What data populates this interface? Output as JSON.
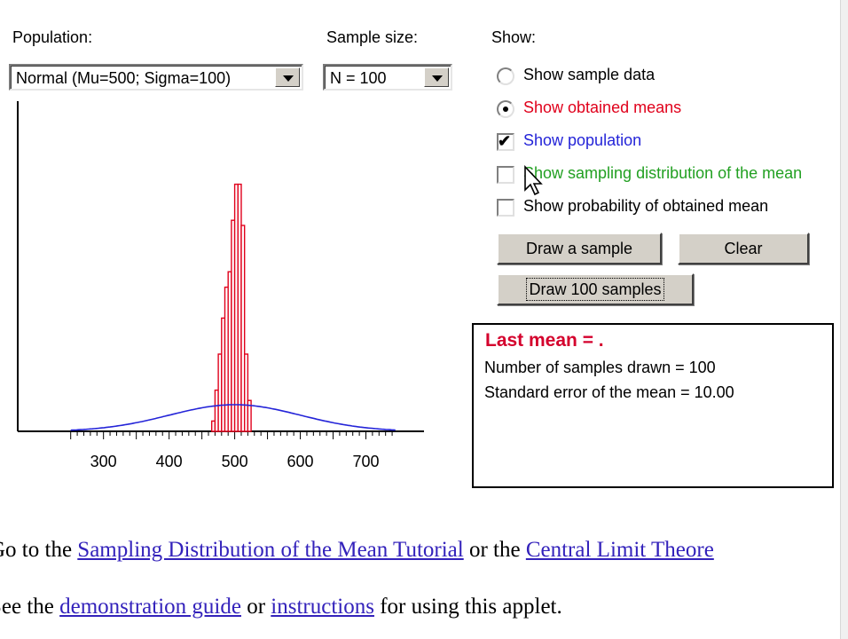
{
  "labels": {
    "population": "Population:",
    "sample_size": "Sample size:",
    "show": "Show:"
  },
  "population_select": {
    "value": "Normal (Mu=500; Sigma=100)"
  },
  "sample_size_select": {
    "value": "N = 100"
  },
  "options": [
    {
      "type": "radio",
      "label": "Show sample data",
      "checked": false,
      "color": "#000000"
    },
    {
      "type": "radio",
      "label": "Show obtained means",
      "checked": true,
      "color": "#e0001b"
    },
    {
      "type": "checkbox",
      "label": "Show population",
      "checked": true,
      "color": "#2424d8"
    },
    {
      "type": "checkbox",
      "label": "Show sampling distribution of the mean",
      "checked": false,
      "color": "#22a022"
    },
    {
      "type": "checkbox",
      "label": "Show probability of obtained mean",
      "checked": false,
      "color": "#000000"
    }
  ],
  "buttons": {
    "draw_sample": "Draw a sample",
    "clear": "Clear",
    "draw_100": "Draw 100 samples"
  },
  "info": {
    "last_mean": "Last mean = .",
    "samples_drawn": "Number of samples drawn = 100",
    "std_error": "Standard error of the mean = 10.00"
  },
  "chart_data": {
    "type": "bar",
    "xlim": [
      245,
      748
    ],
    "xticks": [
      300,
      400,
      500,
      600,
      700
    ],
    "bin_width": 5,
    "histogram": {
      "color": "#e0001b",
      "bins": [
        [
          465,
          0.04
        ],
        [
          470,
          0.16
        ],
        [
          475,
          0.3
        ],
        [
          480,
          0.44
        ],
        [
          485,
          0.56
        ],
        [
          490,
          0.62
        ],
        [
          495,
          0.82
        ],
        [
          500,
          0.96
        ],
        [
          505,
          0.96
        ],
        [
          510,
          0.8
        ],
        [
          515,
          0.3
        ],
        [
          520,
          0.12
        ]
      ]
    },
    "population_curve": {
      "color": "#2424d8",
      "mu": 500,
      "sigma": 100
    }
  },
  "page_text": {
    "line1_before": "Go to the ",
    "link1": "Sampling Distribution of the Mean Tutorial",
    "line1_middle": " or the ",
    "link2": "Central Limit Theore",
    "line2_before": "See the ",
    "link3": "demonstration guide",
    "line2_middle": " or ",
    "link4": "instructions",
    "line2_after": " for using this applet."
  }
}
